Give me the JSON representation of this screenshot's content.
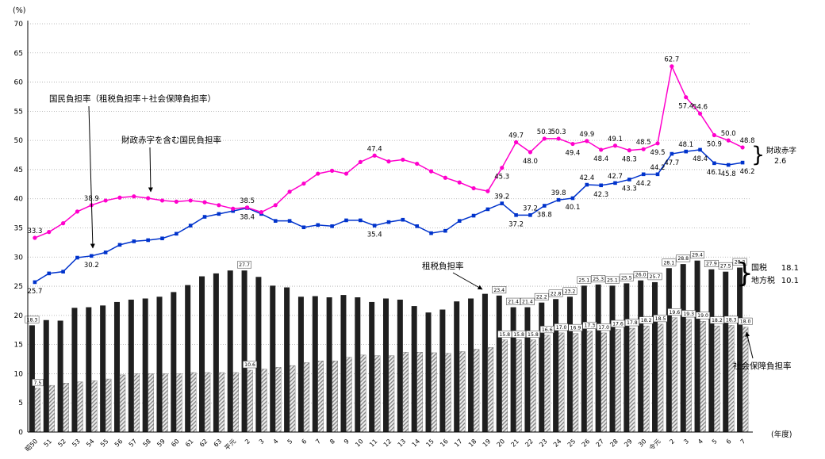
{
  "annotations": {
    "y_unit": "(%)",
    "x_unit": "(年度)",
    "burden_line_label": "国民負担率（租税負担率＋社会保障負担率）",
    "potential_line_label": "財政赤字を含む国民負担率",
    "tax_bar_label": "租税負担率",
    "social_bar_label": "社会保障負担率",
    "deficit_label": "財政赤字",
    "deficit_value": "2.6",
    "national_tax_label": "国税",
    "national_tax_value": "18.1",
    "local_tax_label": "地方税",
    "local_tax_value": "10.1",
    "brace_glyph": "}"
  },
  "chart_data": {
    "type": "combo-bar-line",
    "grid": true,
    "ylim": [
      0,
      70
    ],
    "y_tick_step": 5,
    "categories": [
      "昭50",
      "51",
      "52",
      "53",
      "54",
      "55",
      "56",
      "57",
      "58",
      "59",
      "60",
      "61",
      "62",
      "63",
      "平元",
      "2",
      "3",
      "4",
      "5",
      "6",
      "7",
      "8",
      "9",
      "10",
      "11",
      "12",
      "13",
      "14",
      "15",
      "16",
      "17",
      "18",
      "19",
      "20",
      "21",
      "22",
      "23",
      "24",
      "25",
      "26",
      "27",
      "28",
      "29",
      "30",
      "令元",
      "2",
      "3",
      "4",
      "5",
      "6",
      "7"
    ],
    "series": [
      {
        "name": "租税負担率",
        "type": "bar",
        "color": "#1f1f1f",
        "offset": -1,
        "values": [
          18.3,
          19.2,
          19.1,
          21.3,
          21.4,
          21.7,
          22.3,
          22.7,
          22.9,
          23.2,
          24.0,
          25.2,
          26.7,
          27.2,
          27.7,
          27.7,
          26.6,
          25.1,
          24.8,
          23.2,
          23.3,
          23.1,
          23.5,
          23.1,
          22.3,
          22.9,
          22.7,
          21.6,
          20.5,
          21.0,
          22.4,
          22.9,
          23.7,
          23.4,
          21.4,
          21.4,
          22.2,
          22.8,
          23.2,
          25.1,
          25.3,
          25.1,
          25.5,
          26.0,
          25.7,
          28.1,
          28.8,
          29.4,
          27.9,
          27.5,
          28.2
        ],
        "labeled_indices": [
          0,
          15,
          33,
          34,
          35,
          36,
          37,
          38,
          39,
          40,
          41,
          42,
          43,
          44,
          45,
          46,
          47,
          48,
          49,
          50
        ]
      },
      {
        "name": "社会保障負担率",
        "type": "bar",
        "color": "hatch",
        "offset": 0,
        "values": [
          7.5,
          8.0,
          8.4,
          8.6,
          8.8,
          9.1,
          9.8,
          10.0,
          10.0,
          10.0,
          10.0,
          10.2,
          10.2,
          10.2,
          10.2,
          10.6,
          10.8,
          11.1,
          11.4,
          11.9,
          12.2,
          12.2,
          12.8,
          13.2,
          13.1,
          13.1,
          13.7,
          13.7,
          13.6,
          13.5,
          13.8,
          14.2,
          14.5,
          15.8,
          15.8,
          15.8,
          16.6,
          17.0,
          16.9,
          17.3,
          17.0,
          17.6,
          17.8,
          18.2,
          18.5,
          19.6,
          19.3,
          19.0,
          18.2,
          18.3,
          18.0
        ],
        "labeled_indices": [
          0,
          15,
          33,
          34,
          35,
          36,
          37,
          38,
          39,
          40,
          41,
          42,
          43,
          44,
          45,
          46,
          47,
          48,
          49,
          50
        ]
      },
      {
        "name": "国民負担率（租税負担率＋社会保障負担率）",
        "type": "line",
        "color": "#0033cc",
        "marker": "square",
        "values": [
          25.7,
          27.2,
          27.5,
          29.9,
          30.2,
          30.8,
          32.1,
          32.7,
          32.9,
          33.2,
          34.0,
          35.4,
          36.9,
          37.4,
          37.9,
          38.4,
          37.4,
          36.2,
          36.2,
          35.1,
          35.5,
          35.3,
          36.3,
          36.3,
          35.4,
          36.0,
          36.4,
          35.3,
          34.1,
          34.5,
          36.2,
          37.1,
          38.2,
          39.2,
          37.2,
          37.2,
          38.8,
          39.8,
          40.1,
          42.4,
          42.3,
          42.7,
          43.3,
          44.2,
          44.2,
          47.7,
          48.1,
          48.4,
          46.1,
          45.8,
          46.2
        ],
        "labeled_indices": [
          0,
          4,
          15,
          24,
          33,
          34,
          35,
          36,
          37,
          38,
          39,
          40,
          41,
          42,
          43,
          44,
          45,
          46,
          47,
          48,
          49,
          50
        ],
        "label_side": {
          "0": "below",
          "4": "below",
          "15": "below",
          "24": "below",
          "33": "above",
          "34": "below",
          "35": "above",
          "36": "below",
          "37": "above",
          "38": "below",
          "39": "above",
          "40": "below",
          "41": "above",
          "42": "below",
          "43": "below",
          "44": "above",
          "45": "below",
          "46": "above",
          "47": "below",
          "48": "below",
          "49": "below",
          "50": "below"
        }
      },
      {
        "name": "財政赤字を含む国民負担率",
        "type": "line",
        "color": "#ff00cc",
        "marker": "circle",
        "values": [
          33.3,
          34.3,
          35.8,
          37.8,
          38.9,
          39.7,
          40.2,
          40.4,
          40.1,
          39.7,
          39.5,
          39.7,
          39.4,
          38.9,
          38.3,
          38.5,
          37.7,
          38.9,
          41.2,
          42.6,
          44.3,
          44.8,
          44.3,
          46.3,
          47.4,
          46.4,
          46.7,
          46.0,
          44.7,
          43.6,
          42.8,
          41.8,
          41.3,
          45.3,
          49.7,
          48.0,
          50.3,
          50.3,
          49.4,
          49.9,
          48.4,
          49.1,
          48.3,
          48.5,
          49.5,
          62.7,
          57.4,
          54.6,
          50.9,
          50.0,
          48.8
        ],
        "labeled_indices": [
          0,
          4,
          15,
          24,
          33,
          34,
          35,
          36,
          37,
          38,
          39,
          40,
          41,
          42,
          43,
          44,
          45,
          46,
          47,
          48,
          49,
          50
        ],
        "label_side": {
          "0": "above",
          "4": "above",
          "15": "above",
          "24": "above",
          "33": "below",
          "34": "above",
          "35": "below",
          "36": "above",
          "37": "above",
          "38": "below",
          "39": "above",
          "40": "below",
          "41": "above",
          "42": "below",
          "43": "above",
          "44": "below",
          "45": "above",
          "46": "below",
          "47": "above",
          "48": "below",
          "49": "above",
          "50": "above"
        }
      }
    ]
  }
}
